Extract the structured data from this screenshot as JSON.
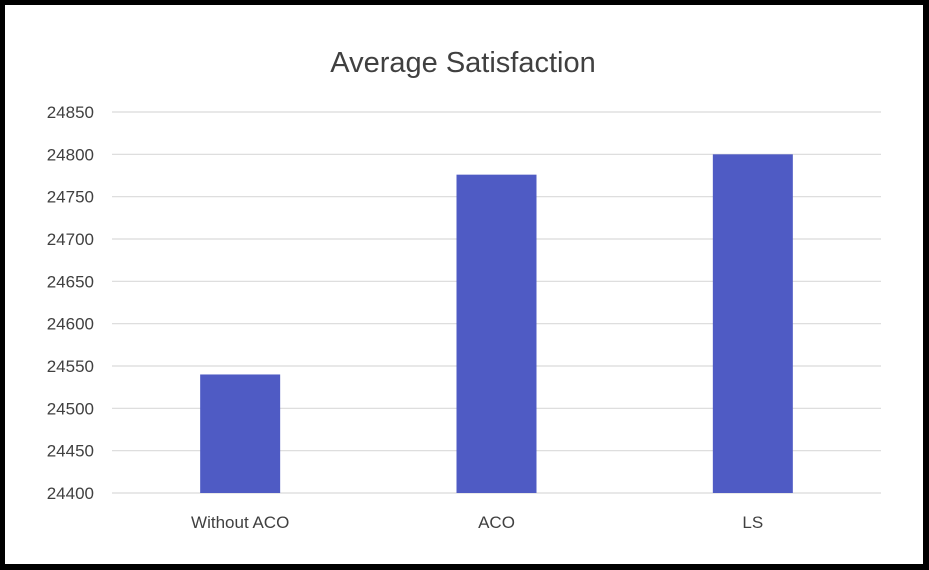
{
  "chart_data": {
    "type": "bar",
    "title": "Average Satisfaction",
    "xlabel": "",
    "ylabel": "",
    "categories": [
      "Without ACO",
      "ACO",
      "LS"
    ],
    "values": [
      24540,
      24776,
      24800
    ],
    "ylim": [
      24400,
      24850
    ],
    "ytick_step": 50,
    "grid": true,
    "legend": "none",
    "bar_color": "#4f5bc4",
    "grid_color": "#d9d9d9",
    "text_color": "#404040"
  }
}
